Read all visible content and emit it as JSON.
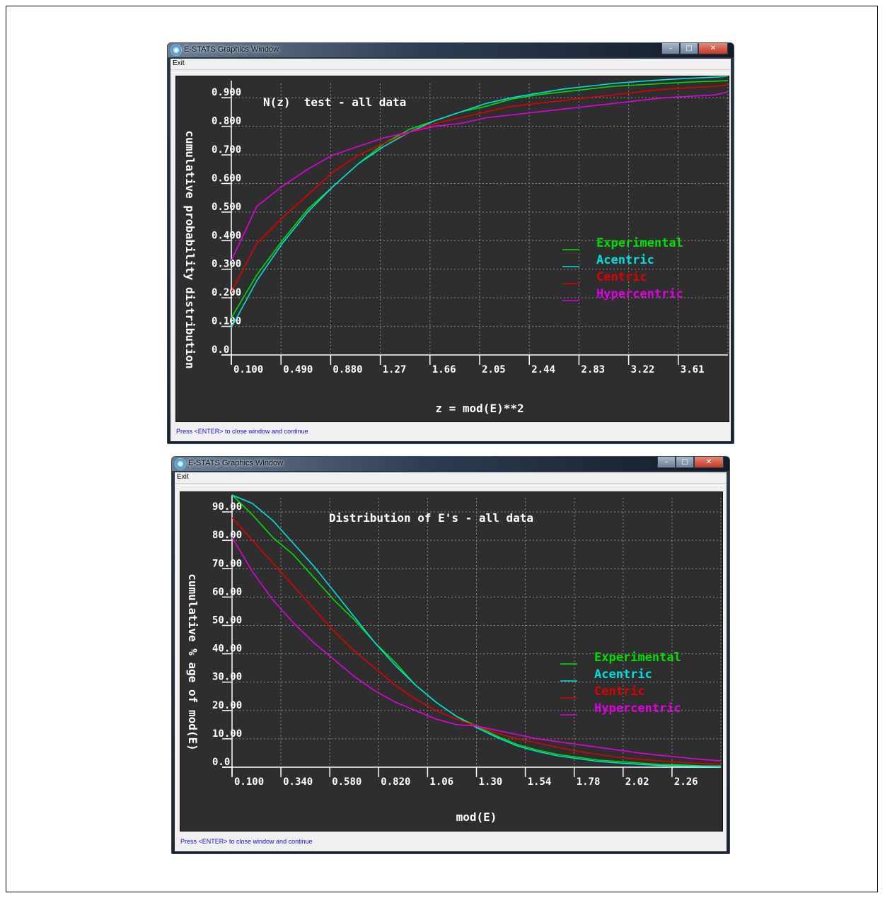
{
  "windows": [
    {
      "title": "E-STATS Graphics Window",
      "menu_exit": "Exit",
      "status": "Press <ENTER> to close window and continue",
      "controls": {
        "minimize": "–",
        "maximize": "□",
        "close": "✕"
      }
    },
    {
      "title": "E-STATS Graphics Window",
      "menu_exit": "Exit",
      "status": "Press <ENTER> to close window and continue",
      "controls": {
        "minimize": "–",
        "maximize": "□",
        "close": "✕"
      }
    }
  ],
  "colors": {
    "background": "#2e2e2e",
    "grid": "#8a8a8a",
    "text": "#ffffff",
    "Experimental": "#00e000",
    "Acentric": "#00e0e0",
    "Centric": "#e00000",
    "Hypercentric": "#e000e0"
  },
  "chart_data": [
    {
      "type": "line",
      "title": "N(z)  test - all data",
      "xlabel": "z = mod(E)**2",
      "ylabel": "cumulative probability distribution",
      "xlim": [
        0.1,
        4.0
      ],
      "ylim": [
        0.0,
        0.95
      ],
      "x_ticks": [
        "0.100",
        "0.490",
        "0.880",
        "1.27",
        "1.66",
        "2.05",
        "2.44",
        "2.83",
        "3.22",
        "3.61"
      ],
      "y_ticks": [
        "0.0",
        "0.100",
        "0.200",
        "0.300",
        "0.400",
        "0.500",
        "0.600",
        "0.700",
        "0.800",
        "0.900"
      ],
      "grid": true,
      "legend_position": "right",
      "x": [
        0.1,
        0.3,
        0.5,
        0.7,
        0.9,
        1.1,
        1.3,
        1.5,
        1.7,
        1.9,
        2.1,
        2.3,
        2.5,
        2.7,
        2.9,
        3.1,
        3.3,
        3.5,
        3.7,
        3.9,
        4.0
      ],
      "series": [
        {
          "name": "Experimental",
          "values": [
            0.13,
            0.28,
            0.4,
            0.51,
            0.59,
            0.67,
            0.74,
            0.79,
            0.82,
            0.85,
            0.87,
            0.895,
            0.91,
            0.92,
            0.93,
            0.94,
            0.945,
            0.95,
            0.955,
            0.958,
            0.96
          ]
        },
        {
          "name": "Acentric",
          "values": [
            0.095,
            0.26,
            0.39,
            0.5,
            0.59,
            0.67,
            0.73,
            0.78,
            0.82,
            0.85,
            0.88,
            0.9,
            0.915,
            0.93,
            0.94,
            0.95,
            0.957,
            0.963,
            0.968,
            0.972,
            0.975
          ]
        },
        {
          "name": "Centric",
          "values": [
            0.22,
            0.39,
            0.48,
            0.56,
            0.64,
            0.7,
            0.74,
            0.78,
            0.81,
            0.83,
            0.85,
            0.87,
            0.88,
            0.89,
            0.9,
            0.91,
            0.92,
            0.93,
            0.935,
            0.94,
            0.945
          ]
        },
        {
          "name": "Hypercentric",
          "values": [
            0.33,
            0.52,
            0.59,
            0.65,
            0.7,
            0.73,
            0.76,
            0.78,
            0.8,
            0.81,
            0.83,
            0.84,
            0.85,
            0.86,
            0.87,
            0.88,
            0.89,
            0.9,
            0.905,
            0.91,
            0.92
          ]
        }
      ]
    },
    {
      "type": "line",
      "title": "Distribution of E's - all data",
      "xlabel": "mod(E)",
      "ylabel": "cumulative % age of mod(E)",
      "xlim": [
        0.1,
        2.5
      ],
      "ylim": [
        0.0,
        95.0
      ],
      "x_ticks": [
        "0.100",
        "0.340",
        "0.580",
        "0.820",
        "1.06",
        "1.30",
        "1.54",
        "1.78",
        "2.02",
        "2.26"
      ],
      "y_ticks": [
        "0.0",
        "10.00",
        "20.00",
        "30.00",
        "40.00",
        "50.00",
        "60.00",
        "70.00",
        "80.00",
        "90.00"
      ],
      "grid": true,
      "legend_position": "right",
      "x": [
        0.1,
        0.2,
        0.3,
        0.4,
        0.5,
        0.6,
        0.7,
        0.8,
        0.9,
        1.0,
        1.1,
        1.2,
        1.3,
        1.4,
        1.5,
        1.6,
        1.7,
        1.8,
        1.9,
        2.0,
        2.1,
        2.2,
        2.3,
        2.4,
        2.5
      ],
      "series": [
        {
          "name": "Experimental",
          "values": [
            96,
            89,
            81,
            75,
            67,
            59,
            52,
            44,
            37,
            29,
            23,
            18,
            14.5,
            11,
            8,
            6,
            4.5,
            3.5,
            2.5,
            2,
            1.5,
            1,
            0.8,
            0.5,
            0.4
          ]
        },
        {
          "name": "Acentric",
          "values": [
            96,
            93,
            87,
            79,
            71,
            62,
            53,
            44,
            36,
            29,
            23,
            18,
            14,
            10.5,
            7.5,
            5.5,
            4,
            3,
            2,
            1.5,
            1,
            0.6,
            0.4,
            0.3,
            0.2
          ]
        },
        {
          "name": "Centric",
          "values": [
            88,
            80,
            72,
            64,
            56,
            48,
            41,
            35,
            29,
            24,
            20,
            17,
            14.5,
            12,
            10,
            8.5,
            7,
            5.5,
            4.5,
            3.5,
            2.8,
            2.2,
            1.7,
            1.3,
            1
          ]
        },
        {
          "name": "Hypercentric",
          "values": [
            81,
            69,
            59,
            51,
            44,
            38,
            32,
            27,
            23,
            20,
            17,
            15,
            14.5,
            13,
            11.5,
            10,
            9,
            8,
            7,
            6,
            5,
            4.2,
            3.5,
            2.8,
            2.2
          ]
        }
      ]
    }
  ]
}
